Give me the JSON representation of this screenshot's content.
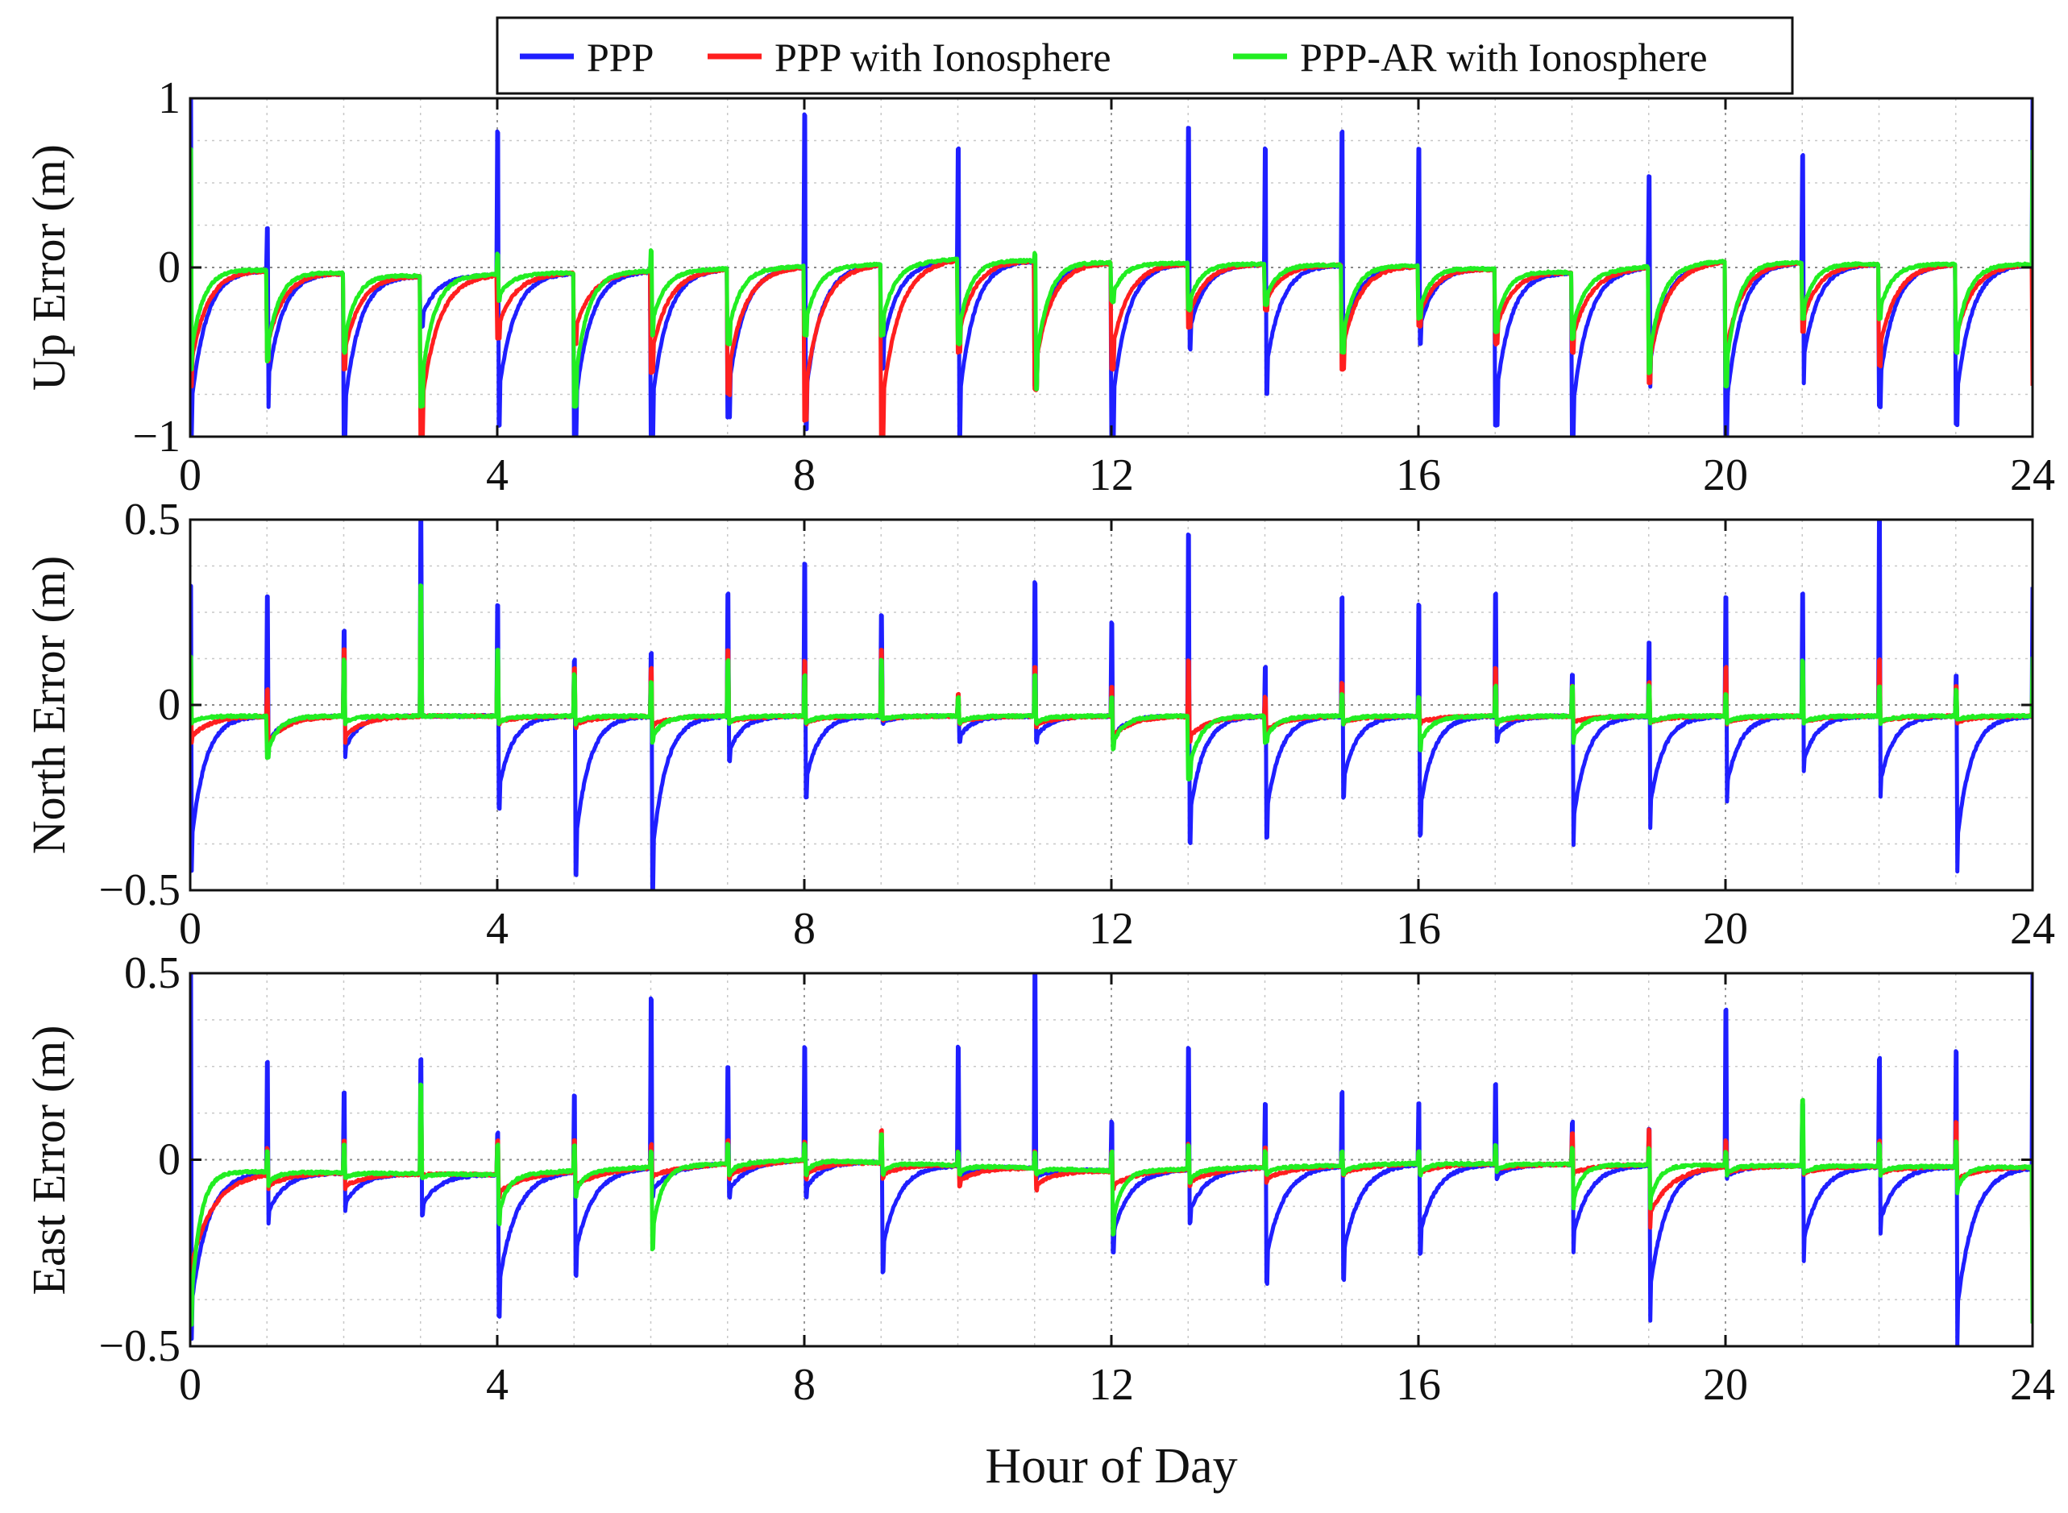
{
  "legend": {
    "placement": "top-center",
    "items": [
      {
        "label": "PPP",
        "color": "#1f1fff"
      },
      {
        "label": "PPP with Ionosphere",
        "color": "#ff1f1f"
      },
      {
        "label": "PPP-AR with Ionosphere",
        "color": "#22ee22"
      }
    ]
  },
  "xlabel": "Hour of Day",
  "chart_data": [
    {
      "type": "line",
      "ylabel": "Up Error (m)",
      "xlim": [
        0,
        24
      ],
      "ylim": [
        -1,
        1
      ],
      "xticks": [
        0,
        4,
        8,
        12,
        16,
        20,
        24
      ],
      "yticks": [
        -1,
        0,
        1
      ],
      "ytick_labels": [
        "−1",
        "0",
        "1"
      ],
      "grid": true,
      "reset_hours": [
        0,
        1,
        2,
        3,
        4,
        5,
        6,
        7,
        8,
        9,
        10,
        11,
        12,
        13,
        14,
        15,
        16,
        17,
        18,
        19,
        20,
        21,
        22,
        23
      ],
      "baseline": {
        "x": [
          0,
          3,
          6,
          9,
          10,
          12,
          14,
          16,
          18,
          20,
          22,
          24
        ],
        "y": [
          0.0,
          -0.05,
          -0.02,
          0.02,
          0.05,
          0.03,
          0.02,
          0.01,
          -0.03,
          0.04,
          0.02,
          0.02
        ]
      },
      "series": [
        {
          "name": "PPP",
          "color": "#1f1fff",
          "spike_max": [
            1.0,
            0.23,
            0.0,
            0.0,
            0.8,
            0.0,
            0.0,
            0.0,
            0.9,
            0.0,
            0.7,
            0.0,
            0.0,
            0.82,
            0.7,
            0.8,
            0.7,
            0.0,
            0.0,
            0.54,
            0.0,
            0.66,
            0.0,
            0.0
          ],
          "spike_min": [
            -1.0,
            -0.82,
            -1.0,
            -0.35,
            -0.93,
            -1.0,
            -1.0,
            -0.88,
            -0.95,
            -0.6,
            -1.0,
            -0.7,
            -1.0,
            -0.48,
            -0.75,
            -0.55,
            -0.45,
            -0.93,
            -1.0,
            -0.7,
            -1.0,
            -0.68,
            -0.82,
            -0.93
          ],
          "decay_tau": 0.2
        },
        {
          "name": "PPP with Ionosphere",
          "color": "#ff1f1f",
          "spike_max": [
            0.0,
            0.0,
            0.0,
            0.0,
            0.0,
            0.0,
            0.0,
            0.0,
            0.0,
            0.0,
            0.0,
            0.0,
            0.0,
            0.0,
            0.0,
            0.0,
            0.0,
            0.0,
            0.0,
            0.0,
            0.0,
            0.0,
            0.0,
            0.0
          ],
          "spike_min": [
            -0.7,
            -0.55,
            -0.6,
            -1.0,
            -0.42,
            -0.45,
            -0.62,
            -0.75,
            -0.9,
            -1.0,
            -0.5,
            -0.72,
            -0.6,
            -0.35,
            -0.25,
            -0.6,
            -0.35,
            -0.45,
            -0.5,
            -0.68,
            -0.6,
            -0.38,
            -0.58,
            -0.5
          ],
          "decay_tau": 0.22
        },
        {
          "name": "PPP-AR with Ionosphere",
          "color": "#22ee22",
          "spike_max": [
            0.7,
            0.0,
            0.0,
            0.0,
            0.08,
            0.0,
            0.1,
            0.0,
            0.0,
            0.0,
            0.0,
            0.08,
            0.0,
            0.0,
            0.0,
            0.0,
            0.0,
            0.0,
            0.0,
            0.0,
            0.0,
            0.0,
            0.0,
            0.0
          ],
          "spike_min": [
            -0.6,
            -0.55,
            -0.5,
            -0.82,
            -0.2,
            -0.82,
            -0.4,
            -0.45,
            -0.4,
            -0.4,
            -0.45,
            -0.72,
            -0.2,
            -0.25,
            -0.22,
            -0.5,
            -0.3,
            -0.38,
            -0.42,
            -0.62,
            -0.7,
            -0.3,
            -0.3,
            -0.5
          ],
          "decay_tau": 0.16
        }
      ]
    },
    {
      "type": "line",
      "ylabel": "North Error (m)",
      "xlim": [
        0,
        24
      ],
      "ylim": [
        -0.5,
        0.5
      ],
      "xticks": [
        0,
        4,
        8,
        12,
        16,
        20,
        24
      ],
      "yticks": [
        -0.5,
        0,
        0.5
      ],
      "ytick_labels": [
        "−0.5",
        "0",
        "0.5"
      ],
      "grid": true,
      "reset_hours": [
        0,
        1,
        2,
        3,
        4,
        5,
        6,
        7,
        8,
        9,
        10,
        11,
        12,
        13,
        14,
        15,
        16,
        17,
        18,
        19,
        20,
        21,
        22,
        23
      ],
      "baseline": {
        "x": [
          0,
          24
        ],
        "y": [
          -0.03,
          -0.03
        ]
      },
      "series": [
        {
          "name": "PPP",
          "color": "#1f1fff",
          "spike_max": [
            0.32,
            0.29,
            0.2,
            0.5,
            0.27,
            0.12,
            0.14,
            0.3,
            0.38,
            0.24,
            0.02,
            0.33,
            0.22,
            0.46,
            0.1,
            0.29,
            0.27,
            0.3,
            0.08,
            0.17,
            0.29,
            0.3,
            0.5,
            0.08
          ],
          "spike_min": [
            -0.45,
            -0.12,
            -0.14,
            -0.03,
            -0.28,
            -0.46,
            -0.5,
            -0.15,
            -0.25,
            -0.05,
            -0.1,
            -0.1,
            -0.1,
            -0.37,
            -0.36,
            -0.25,
            -0.35,
            -0.1,
            -0.38,
            -0.33,
            -0.26,
            -0.18,
            -0.25,
            -0.45
          ],
          "decay_tau": 0.18
        },
        {
          "name": "PPP with Ionosphere",
          "color": "#ff1f1f",
          "spike_max": [
            0.08,
            0.04,
            0.15,
            0.28,
            0.12,
            0.1,
            0.1,
            0.15,
            0.12,
            0.15,
            0.03,
            0.1,
            0.05,
            0.12,
            0.02,
            0.06,
            0.02,
            0.1,
            0.05,
            0.06,
            0.1,
            0.06,
            0.12,
            0.05
          ],
          "spike_min": [
            -0.1,
            -0.12,
            -0.1,
            -0.03,
            -0.05,
            -0.06,
            -0.06,
            -0.05,
            -0.05,
            -0.04,
            -0.05,
            -0.06,
            -0.1,
            -0.1,
            -0.08,
            -0.05,
            -0.05,
            -0.05,
            -0.05,
            -0.05,
            -0.05,
            -0.05,
            -0.05,
            -0.05
          ],
          "decay_tau": 0.25
        },
        {
          "name": "PPP-AR with Ionosphere",
          "color": "#22ee22",
          "spike_max": [
            0.13,
            0.0,
            0.12,
            0.32,
            0.15,
            0.08,
            0.06,
            0.12,
            0.08,
            0.12,
            0.02,
            0.08,
            0.02,
            0.0,
            0.0,
            0.03,
            0.02,
            0.05,
            0.05,
            0.05,
            0.03,
            0.12,
            0.05,
            0.04
          ],
          "spike_min": [
            -0.05,
            -0.14,
            -0.05,
            -0.03,
            -0.05,
            -0.05,
            -0.1,
            -0.05,
            -0.05,
            -0.04,
            -0.05,
            -0.05,
            -0.12,
            -0.2,
            -0.1,
            -0.05,
            -0.12,
            -0.05,
            -0.1,
            -0.05,
            -0.05,
            -0.05,
            -0.05,
            -0.04
          ],
          "decay_tau": 0.15
        }
      ]
    },
    {
      "type": "line",
      "ylabel": "East Error (m)",
      "xlim": [
        0,
        24
      ],
      "ylim": [
        -0.5,
        0.5
      ],
      "xticks": [
        0,
        4,
        8,
        12,
        16,
        20,
        24
      ],
      "yticks": [
        -0.5,
        0,
        0.5
      ],
      "ytick_labels": [
        "−0.5",
        "0",
        "0.5"
      ],
      "grid": true,
      "reset_hours": [
        0,
        1,
        2,
        3,
        4,
        5,
        6,
        7,
        8,
        9,
        10,
        11,
        12,
        13,
        14,
        15,
        16,
        17,
        18,
        19,
        20,
        21,
        22,
        23
      ],
      "baseline": {
        "x": [
          0,
          4,
          8,
          12,
          16,
          24
        ],
        "y": [
          -0.03,
          -0.04,
          0.0,
          -0.03,
          -0.01,
          -0.02
        ]
      },
      "series": [
        {
          "name": "PPP",
          "color": "#1f1fff",
          "spike_max": [
            0.5,
            0.26,
            0.18,
            0.27,
            0.07,
            0.17,
            0.43,
            0.25,
            0.3,
            0.05,
            0.3,
            0.5,
            0.1,
            0.3,
            0.15,
            0.18,
            0.15,
            0.2,
            0.1,
            0.08,
            0.4,
            0.15,
            0.27,
            0.29
          ],
          "spike_min": [
            -0.48,
            -0.17,
            -0.14,
            -0.15,
            -0.42,
            -0.31,
            -0.1,
            -0.1,
            -0.1,
            -0.3,
            -0.05,
            -0.05,
            -0.25,
            -0.17,
            -0.33,
            -0.32,
            -0.25,
            -0.05,
            -0.25,
            -0.43,
            -0.05,
            -0.27,
            -0.2,
            -0.5
          ],
          "decay_tau": 0.22
        },
        {
          "name": "PPP with Ionosphere",
          "color": "#ff1f1f",
          "spike_max": [
            0.0,
            0.03,
            0.05,
            0.15,
            0.05,
            0.05,
            0.04,
            0.05,
            0.05,
            0.08,
            0.02,
            0.02,
            0.02,
            0.04,
            0.03,
            0.02,
            0.02,
            0.02,
            0.07,
            0.08,
            0.05,
            0.05,
            0.05,
            0.1
          ],
          "spike_min": [
            -0.35,
            -0.08,
            -0.08,
            -0.04,
            -0.1,
            -0.08,
            -0.05,
            -0.05,
            -0.05,
            -0.05,
            -0.07,
            -0.08,
            -0.08,
            -0.07,
            -0.06,
            -0.04,
            -0.04,
            -0.03,
            -0.04,
            -0.18,
            -0.04,
            -0.04,
            -0.04,
            -0.06
          ],
          "decay_tau": 0.3
        },
        {
          "name": "PPP-AR with Ionosphere",
          "color": "#22ee22",
          "spike_max": [
            0.0,
            0.02,
            0.04,
            0.2,
            0.04,
            0.04,
            0.02,
            0.04,
            0.04,
            0.07,
            0.02,
            0.02,
            0.02,
            0.04,
            0.02,
            0.02,
            0.02,
            0.04,
            0.03,
            0.03,
            0.02,
            0.16,
            0.04,
            0.05
          ],
          "spike_min": [
            -0.44,
            -0.07,
            -0.05,
            -0.05,
            -0.17,
            -0.1,
            -0.24,
            -0.04,
            -0.04,
            -0.04,
            -0.04,
            -0.04,
            -0.2,
            -0.06,
            -0.04,
            -0.04,
            -0.04,
            -0.03,
            -0.13,
            -0.13,
            -0.04,
            -0.04,
            -0.04,
            -0.09
          ],
          "decay_tau": 0.12
        }
      ]
    }
  ]
}
